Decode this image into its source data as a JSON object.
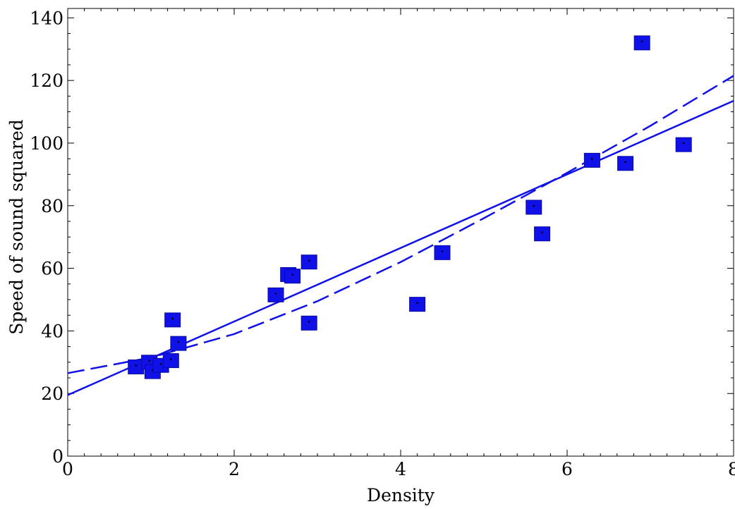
{
  "chart_data": {
    "type": "scatter",
    "title": "",
    "xlabel": "Density",
    "ylabel": "Speed of sound  squared",
    "xlim": [
      0,
      8
    ],
    "ylim": [
      0,
      143
    ],
    "x_ticks": [
      "0",
      "2",
      "4",
      "6",
      "8"
    ],
    "y_ticks": [
      "0",
      "20",
      "40",
      "60",
      "80",
      "100",
      "120",
      "140"
    ],
    "grid": false,
    "legend": "none",
    "colors": {
      "marker": "#1010e8",
      "marker_dot": "#000000",
      "line": "#1010e8",
      "axis": "#000000"
    },
    "series": [
      {
        "type": "scatter",
        "x": [
          0.82,
          0.98,
          1.02,
          1.12,
          1.24,
          1.26,
          1.33,
          2.5,
          2.65,
          2.7,
          2.9,
          2.9,
          4.2,
          4.5,
          5.6,
          5.7,
          6.3,
          6.7,
          6.9,
          7.4
        ],
        "y": [
          28.5,
          30.0,
          27.0,
          29.0,
          30.5,
          43.5,
          36.0,
          51.5,
          58.0,
          57.5,
          62.0,
          42.5,
          48.5,
          65.0,
          79.5,
          71.0,
          94.5,
          93.5,
          132.0,
          99.5
        ]
      },
      {
        "type": "line",
        "style": "solid",
        "x": [
          0,
          8
        ],
        "y": [
          19.5,
          113.5
        ]
      },
      {
        "type": "line",
        "style": "dashed",
        "x": [
          0,
          1,
          2,
          3,
          4,
          5,
          6,
          7,
          8
        ],
        "y": [
          26.5,
          31.5,
          39.0,
          49.5,
          62.0,
          76.0,
          90.5,
          105.5,
          121.5
        ]
      }
    ]
  }
}
